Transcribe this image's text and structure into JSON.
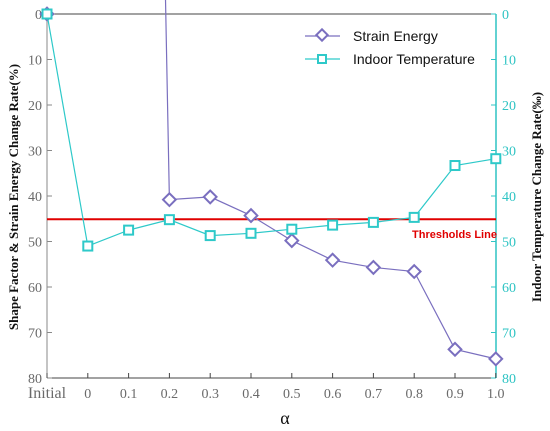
{
  "chart_data": {
    "type": "line",
    "categories": [
      "Initial",
      "0",
      "0.1",
      "0.2",
      "0.3",
      "0.4",
      "0.5",
      "0.6",
      "0.7",
      "0.8",
      "0.9",
      "1.0"
    ],
    "xlabel": "α",
    "ylabel_left": "Shape Factor & Strain Energy Change Rate(%)",
    "ylabel_right": "Indoor Temperature Change Rate(‰)",
    "ylim_left": [
      80,
      0
    ],
    "ylim_right": [
      80,
      0
    ],
    "inverted_y": true,
    "yticks": [
      0,
      10,
      20,
      30,
      40,
      50,
      60,
      70,
      80
    ],
    "legend_position": "top-right",
    "series": [
      {
        "name": "Strain Energy",
        "axis": "left",
        "color": "#7a6fbf",
        "marker": "diamond",
        "values": [
          0,
          null,
          null,
          40.8,
          40.2,
          44.3,
          49.8,
          54.1,
          55.7,
          56.6,
          73.7,
          75.8
        ]
      },
      {
        "name": "Indoor Temperature",
        "axis": "right",
        "color": "#2ec9c9",
        "marker": "square",
        "values": [
          0,
          51.0,
          47.5,
          45.2,
          48.7,
          48.2,
          47.3,
          46.4,
          45.8,
          44.7,
          33.3,
          31.8
        ]
      }
    ],
    "threshold": {
      "label": "Thresholds Line",
      "value": 45.1,
      "color": "#e00000"
    }
  },
  "colors": {
    "left_axis": "#8a8a8a",
    "right_axis": "#2fc4c4"
  }
}
